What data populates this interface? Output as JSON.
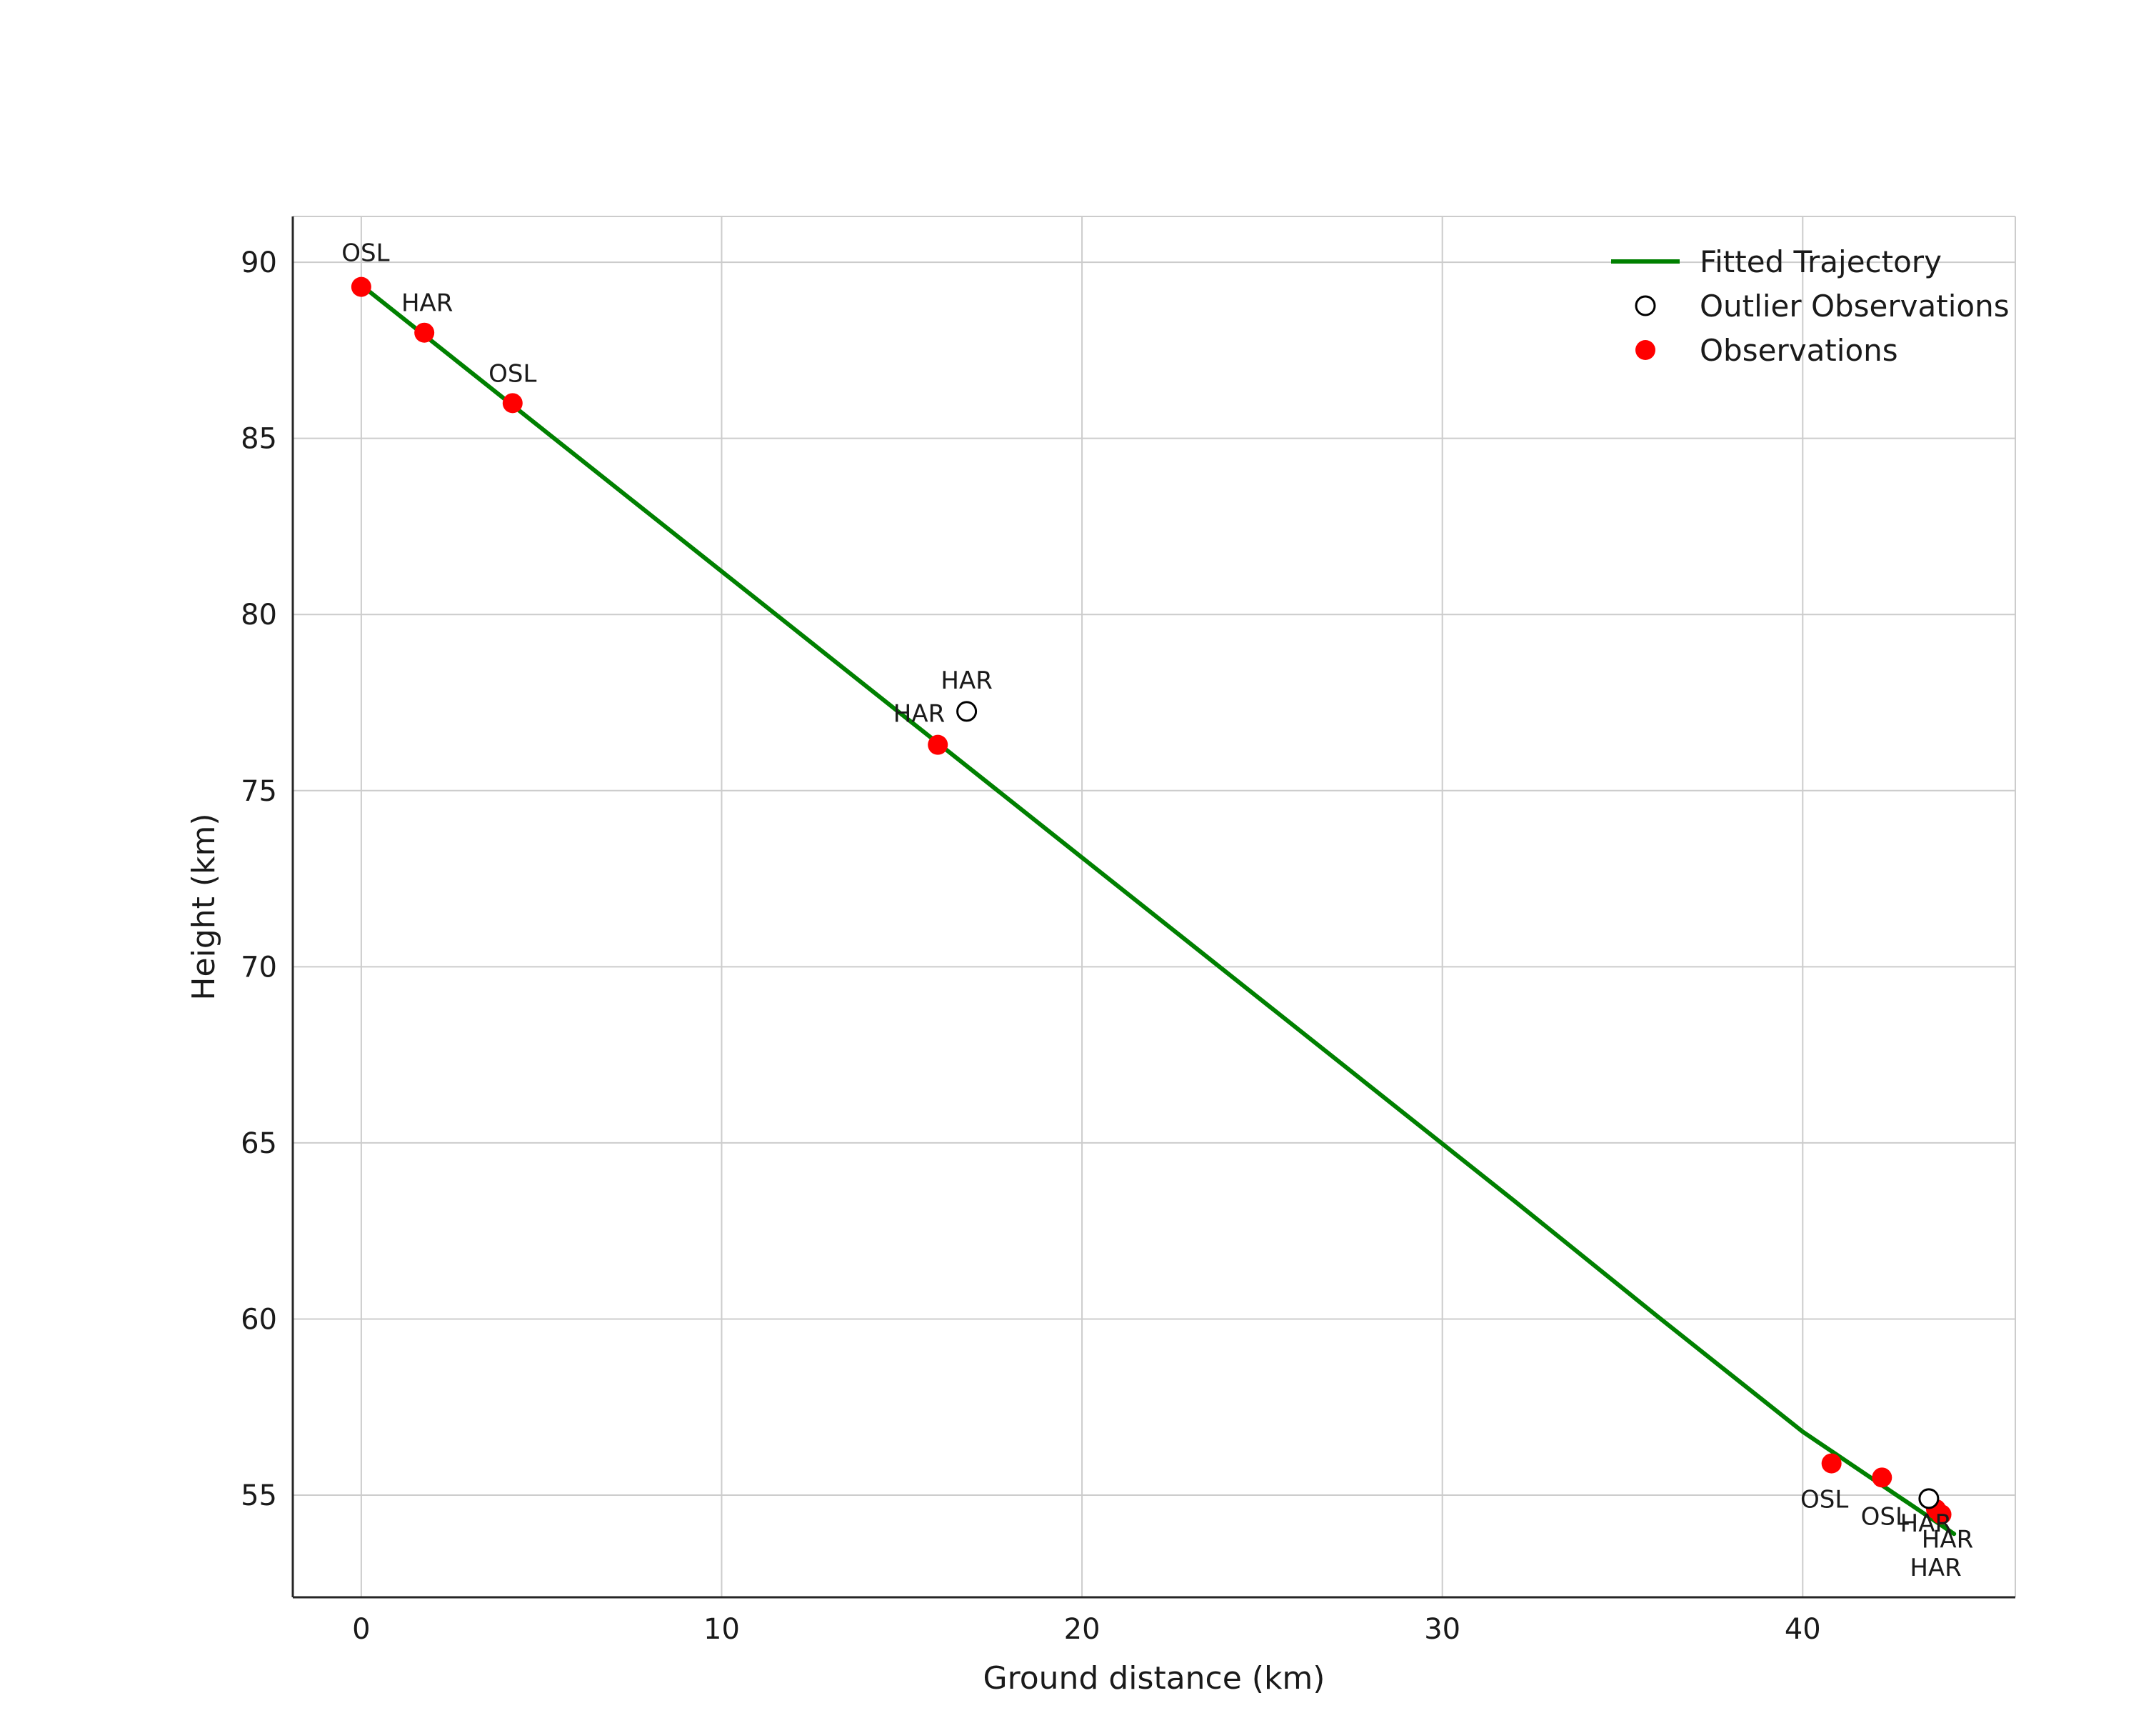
{
  "figure": {
    "background": "#ffffff"
  },
  "chart_data": {
    "type": "scatter",
    "title": "",
    "xlabel": "Ground distance (km)",
    "ylabel": "Height (km)",
    "xlim": [
      -1.9,
      45.9
    ],
    "ylim": [
      52.1,
      91.3
    ],
    "x_ticks": [
      0,
      10,
      20,
      30,
      40
    ],
    "y_ticks": [
      55,
      60,
      65,
      70,
      75,
      80,
      85,
      90
    ],
    "grid": true,
    "grid_color": "#cccccc",
    "spine_color_main": "#262626",
    "spine_color_light": "#cccccc",
    "legend": {
      "position": "upper right",
      "entries": [
        {
          "label": "Fitted Trajectory",
          "marker": "line",
          "color": "#008000"
        },
        {
          "label": "Outlier Observations",
          "marker": "open-circle",
          "color": "#000000"
        },
        {
          "label": "Observations",
          "marker": "dot",
          "color": "#ff0000"
        }
      ]
    },
    "series": [
      {
        "name": "Fitted Trajectory",
        "type": "line",
        "color": "#008000",
        "width": 6,
        "points": [
          [
            0,
            89.35
          ],
          [
            4,
            86.1
          ],
          [
            8,
            82.85
          ],
          [
            12,
            79.6
          ],
          [
            16,
            76.35
          ],
          [
            20,
            73.1
          ],
          [
            24,
            69.85
          ],
          [
            28,
            66.6
          ],
          [
            32,
            63.35
          ],
          [
            36,
            60.05
          ],
          [
            40,
            56.8
          ],
          [
            44.2,
            53.9
          ]
        ]
      },
      {
        "name": "Observations",
        "type": "scatter",
        "marker": "dot",
        "color": "#ff0000",
        "points": [
          {
            "x": 0.0,
            "y": 89.3,
            "label": "OSL",
            "dx": 6,
            "dy": -36,
            "anchor": "middle"
          },
          {
            "x": 1.75,
            "y": 88.0,
            "label": "HAR",
            "dx": 4,
            "dy": -30,
            "anchor": "middle"
          },
          {
            "x": 4.2,
            "y": 86.0,
            "label": "OSL",
            "dx": 0,
            "dy": -30,
            "anchor": "middle"
          },
          {
            "x": 16.0,
            "y": 76.3,
            "label": "HAR",
            "dx": 10,
            "dy": -32,
            "anchor": "end"
          },
          {
            "x": 40.8,
            "y": 55.9,
            "label": "OSL",
            "dx": -10,
            "dy": 62,
            "anchor": "middle"
          },
          {
            "x": 42.2,
            "y": 55.5,
            "label": "OSL",
            "dx": 4,
            "dy": 66,
            "anchor": "middle"
          },
          {
            "x": 43.7,
            "y": 54.6,
            "label": "HAR",
            "dx": 16,
            "dy": 54,
            "anchor": "middle"
          },
          {
            "x": 43.85,
            "y": 54.45,
            "label": "HAR",
            "dx": -8,
            "dy": 86,
            "anchor": "middle"
          }
        ]
      },
      {
        "name": "Outlier Observations",
        "type": "scatter",
        "marker": "open-circle",
        "color": "#000000",
        "points": [
          {
            "x": 16.8,
            "y": 77.25,
            "label": "HAR",
            "dx": 0,
            "dy": -32,
            "anchor": "middle"
          },
          {
            "x": 43.5,
            "y": 54.9,
            "label": "HAR",
            "dx": -4,
            "dy": 46,
            "anchor": "middle"
          }
        ]
      }
    ],
    "style": {
      "tick_font_size": 40,
      "axis_label_font_size": 44,
      "legend_font_size": 42,
      "annotation_font_size": 34,
      "marker_radius": 14,
      "outlier_radius": 13,
      "outlier_stroke": 3
    }
  }
}
